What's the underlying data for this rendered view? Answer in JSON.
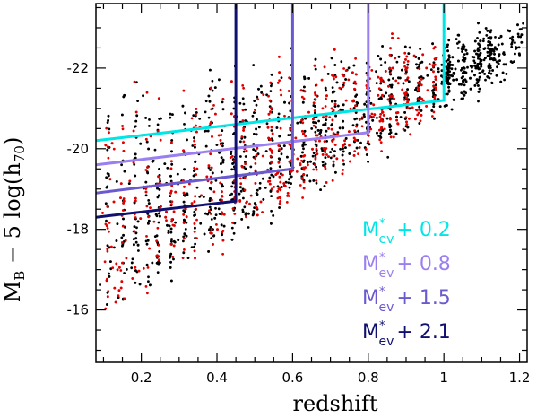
{
  "chart_data": {
    "type": "scatter",
    "xlabel": "redshift",
    "ylabel_parts": {
      "m": "M",
      "b_sub": "B",
      "mid": " − 5  log(h",
      "h_sub": "70",
      "end": ")"
    },
    "xlim": [
      0.08,
      1.22
    ],
    "ylim": [
      -14.7,
      -23.6
    ],
    "x_ticks": [
      0.2,
      0.4,
      0.6,
      0.8,
      1.0,
      1.2
    ],
    "x_tick_labels": [
      "0.2",
      "0.4",
      "0.6",
      "0.8",
      "1",
      "1.2"
    ],
    "y_ticks": [
      -16,
      -18,
      -20,
      -22
    ],
    "y_tick_labels": [
      "-16",
      "-18",
      "-20",
      "-22"
    ],
    "grid": false,
    "series": [
      {
        "color": "#000000",
        "description_of_points": "all galaxies"
      },
      {
        "color": "#e00000",
        "description_of_points": "selected galaxies"
      }
    ],
    "selection_boxes": [
      {
        "color": "#00e5e5",
        "z_max": 1.0,
        "mag_at_zmin": -20.2,
        "mag_at_zmax": -21.2
      },
      {
        "color": "#9a7ff0",
        "z_max": 0.8,
        "mag_at_zmin": -19.6,
        "mag_at_zmax": -20.4
      },
      {
        "color": "#6a5ad0",
        "z_max": 0.6,
        "mag_at_zmin": -18.9,
        "mag_at_zmax": -19.5
      },
      {
        "color": "#101070",
        "z_max": 0.45,
        "mag_at_zmin": -18.3,
        "mag_at_zmax": -18.7
      }
    ],
    "legend": [
      {
        "base": "M",
        "sup": "*",
        "sub": "ev",
        "suffix": "+  0.2",
        "color": "#00e5e5"
      },
      {
        "base": "M",
        "sup": "*",
        "sub": "ev",
        "suffix": "+  0.8",
        "color": "#9a7ff0"
      },
      {
        "base": "M",
        "sup": "*",
        "sub": "ev",
        "suffix": "+  1.5",
        "color": "#6a5ad0"
      },
      {
        "base": "M",
        "sup": "*",
        "sub": "ev",
        "suffix": "+  2.1",
        "color": "#101070"
      }
    ],
    "legend_position": "bottom-right"
  }
}
